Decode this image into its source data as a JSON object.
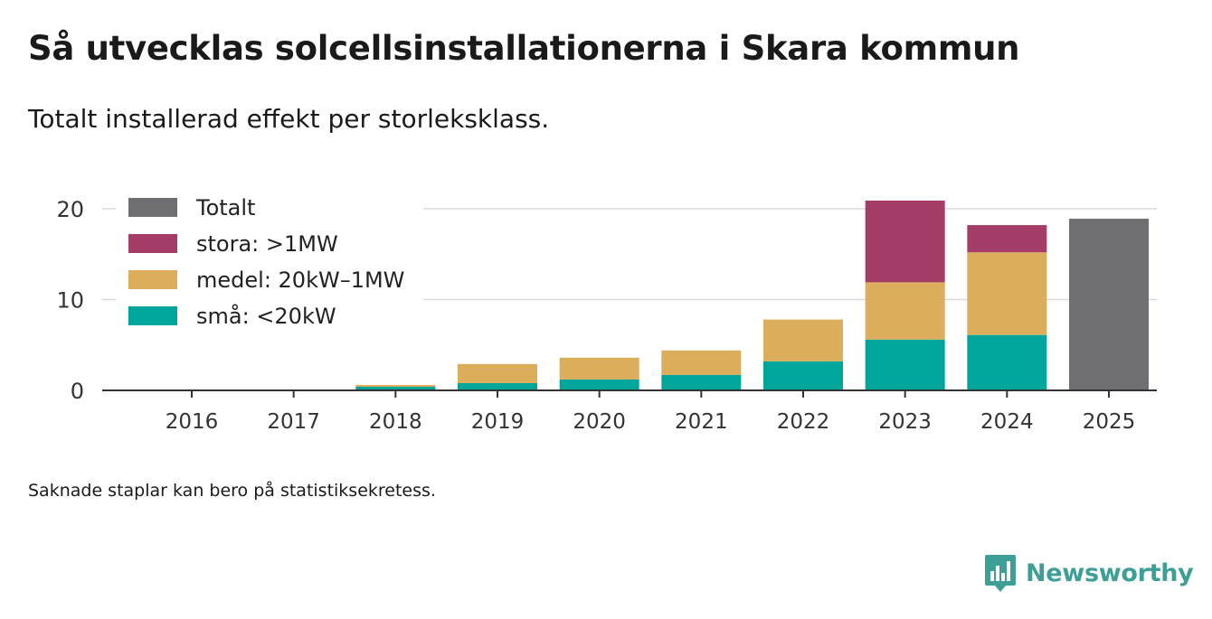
{
  "header": {
    "title": "Så utvecklas solcellsinstallationerna i Skara kommun",
    "subtitle": "Totalt installerad effekt per storleksklass."
  },
  "footnote": "Saknade staplar kan bero på statistiksekretess.",
  "brand": {
    "name": "Newsworthy",
    "color": "#3d9f96",
    "icon": "newsworthy-bar-chart-speech-bubble-icon"
  },
  "chart_data": {
    "type": "bar",
    "stacked": true,
    "categories": [
      "2016",
      "2017",
      "2018",
      "2019",
      "2020",
      "2021",
      "2022",
      "2023",
      "2024",
      "2025"
    ],
    "series": [
      {
        "name": "små: <20kW",
        "color": "#00a59b",
        "values": [
          0,
          0,
          0.4,
          0.8,
          1.2,
          1.7,
          3.2,
          5.6,
          6.1,
          null
        ]
      },
      {
        "name": "medel: 20kW–1MW",
        "color": "#dcad5a",
        "values": [
          0,
          0,
          0.2,
          2.1,
          2.4,
          2.7,
          4.6,
          6.3,
          9.1,
          null
        ]
      },
      {
        "name": "stora: >1MW",
        "color": "#a43e68",
        "values": [
          0,
          0,
          0,
          0,
          0,
          0,
          0,
          9.0,
          3.0,
          null
        ]
      },
      {
        "name": "Totalt",
        "color": "#6f6e73",
        "values": [
          null,
          null,
          null,
          null,
          null,
          null,
          null,
          null,
          null,
          18.9
        ]
      }
    ],
    "legend_order": [
      "Totalt",
      "stora: >1MW",
      "medel: 20kW–1MW",
      "små: <20kW"
    ],
    "yticks": [
      0,
      10,
      20
    ],
    "ylim": [
      0,
      21.5
    ],
    "grid": true,
    "legend_position": "top-left",
    "xlabel": "",
    "ylabel": ""
  }
}
